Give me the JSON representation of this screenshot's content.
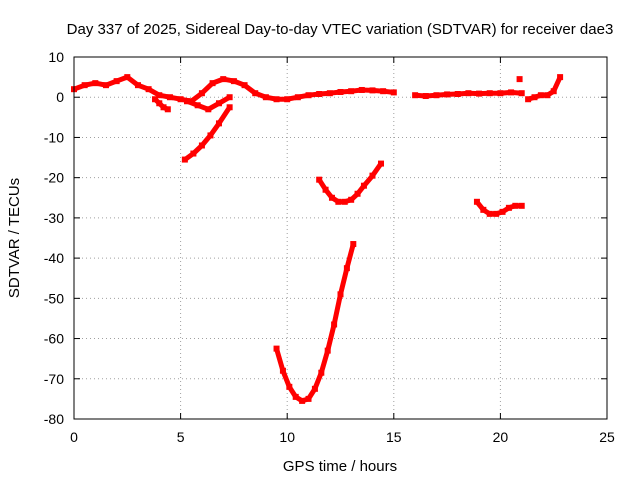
{
  "chart_data": {
    "type": "scatter",
    "title": "Day 337 of 2025, Sidereal Day-to-day VTEC variation (SDTVAR) for receiver dae3",
    "xlabel": "GPS time / hours",
    "ylabel": "SDTVAR / TECUs",
    "xlim": [
      0,
      25
    ],
    "ylim": [
      -80,
      10
    ],
    "xticks": [
      0,
      5,
      10,
      15,
      20,
      25
    ],
    "yticks": [
      10,
      0,
      -10,
      -20,
      -30,
      -40,
      -50,
      -60,
      -70,
      -80
    ],
    "grid": true,
    "color": "#ff0000",
    "series": [
      {
        "x": [
          0,
          0.5,
          1,
          1.5,
          2,
          2.5,
          3,
          3.5,
          4,
          4.5,
          5,
          5.5,
          6,
          6.5,
          7,
          7.5,
          8,
          8.5,
          9,
          9.5,
          10,
          10.5,
          11,
          11.5,
          12,
          12.5,
          13,
          13.5,
          14,
          14.5,
          15
        ],
        "y": [
          2,
          3,
          3.5,
          3,
          4,
          5,
          3,
          2,
          0.5,
          0,
          -0.5,
          -1,
          1,
          3.5,
          4.5,
          4,
          3,
          1,
          0,
          -0.5,
          -0.5,
          0,
          0.5,
          0.8,
          1,
          1.3,
          1.5,
          1.8,
          1.7,
          1.5,
          1.2
        ]
      },
      {
        "x": [
          3.8,
          4,
          4.2,
          4.4
        ],
        "y": [
          -0.5,
          -1.5,
          -2.5,
          -3
        ]
      },
      {
        "x": [
          5.3,
          5.8,
          6.3,
          6.8,
          7.3
        ],
        "y": [
          -1,
          -2,
          -3,
          -1.5,
          0
        ]
      },
      {
        "x": [
          5.2,
          5.6,
          6,
          6.4,
          6.8,
          7.3
        ],
        "y": [
          -15.5,
          -14,
          -12,
          -9.5,
          -6.5,
          -2.5
        ]
      },
      {
        "x": [
          11.5,
          11.8,
          12.1,
          12.4,
          12.7,
          13,
          13.3,
          13.6,
          14,
          14.4
        ],
        "y": [
          -20.5,
          -23,
          -25,
          -26,
          -26,
          -25.5,
          -24,
          -22,
          -19.5,
          -16.5
        ]
      },
      {
        "x": [
          9.5,
          9.8,
          10.1,
          10.4,
          10.7,
          11,
          11.3,
          11.6,
          11.9,
          12.2,
          12.5,
          12.8,
          13.1
        ],
        "y": [
          -62.5,
          -68,
          -72,
          -74.5,
          -75.5,
          -75,
          -72.5,
          -68.5,
          -63,
          -56.5,
          -49,
          -42.5,
          -36.5
        ]
      },
      {
        "x": [
          16,
          16.5,
          17,
          17.5,
          18,
          18.5,
          19,
          19.5,
          20,
          20.5,
          21
        ],
        "y": [
          0.5,
          0.3,
          0.5,
          0.7,
          0.8,
          1,
          0.9,
          1,
          1,
          1.2,
          1
        ]
      },
      {
        "x": [
          18.9,
          19.2,
          19.5,
          19.8,
          20.1,
          20.4,
          20.7,
          21
        ],
        "y": [
          -26,
          -28,
          -29,
          -29,
          -28.5,
          -27.5,
          -27,
          -27
        ]
      },
      {
        "x": [
          21.3,
          21.6,
          21.9,
          22.2,
          22.5,
          22.8
        ],
        "y": [
          -0.5,
          0,
          0.5,
          0.5,
          1.5,
          5
        ]
      },
      {
        "x": [
          20.9
        ],
        "y": [
          4.5
        ]
      }
    ]
  }
}
